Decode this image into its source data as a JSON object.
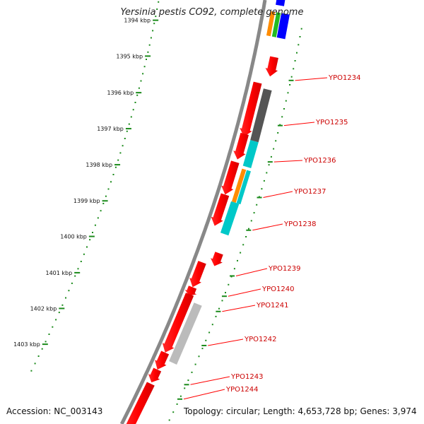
{
  "title": "Yersinia pestis CO92, complete genome",
  "accession": "Accession: NC_003143",
  "topology": "Topology: circular; Length: 4,653,728 bp; Genes: 3,974",
  "colors": {
    "red": "#ff0000",
    "dark_gray": "#555555",
    "light_gray": "#bbbbbb",
    "cyan": "#00c8c8",
    "orange": "#ff8c00",
    "green": "#22bb22",
    "blue": "#0000ff",
    "tick_green": "#1a8a1a",
    "backbone": "#888888"
  },
  "kbp_ticks": [
    "1394 kbp",
    "1395 kbp",
    "1396 kbp",
    "1397 kbp",
    "1398 kbp",
    "1399 kbp",
    "1400 kbp",
    "1401 kbp",
    "1402 kbp",
    "1403 kbp"
  ],
  "gene_labels": [
    "YPO1234",
    "YPO1235",
    "YPO1236",
    "YPO1237",
    "YPO1238",
    "YPO1239",
    "YPO1240",
    "YPO1241",
    "YPO1242",
    "YPO1243",
    "YPO1244"
  ]
}
